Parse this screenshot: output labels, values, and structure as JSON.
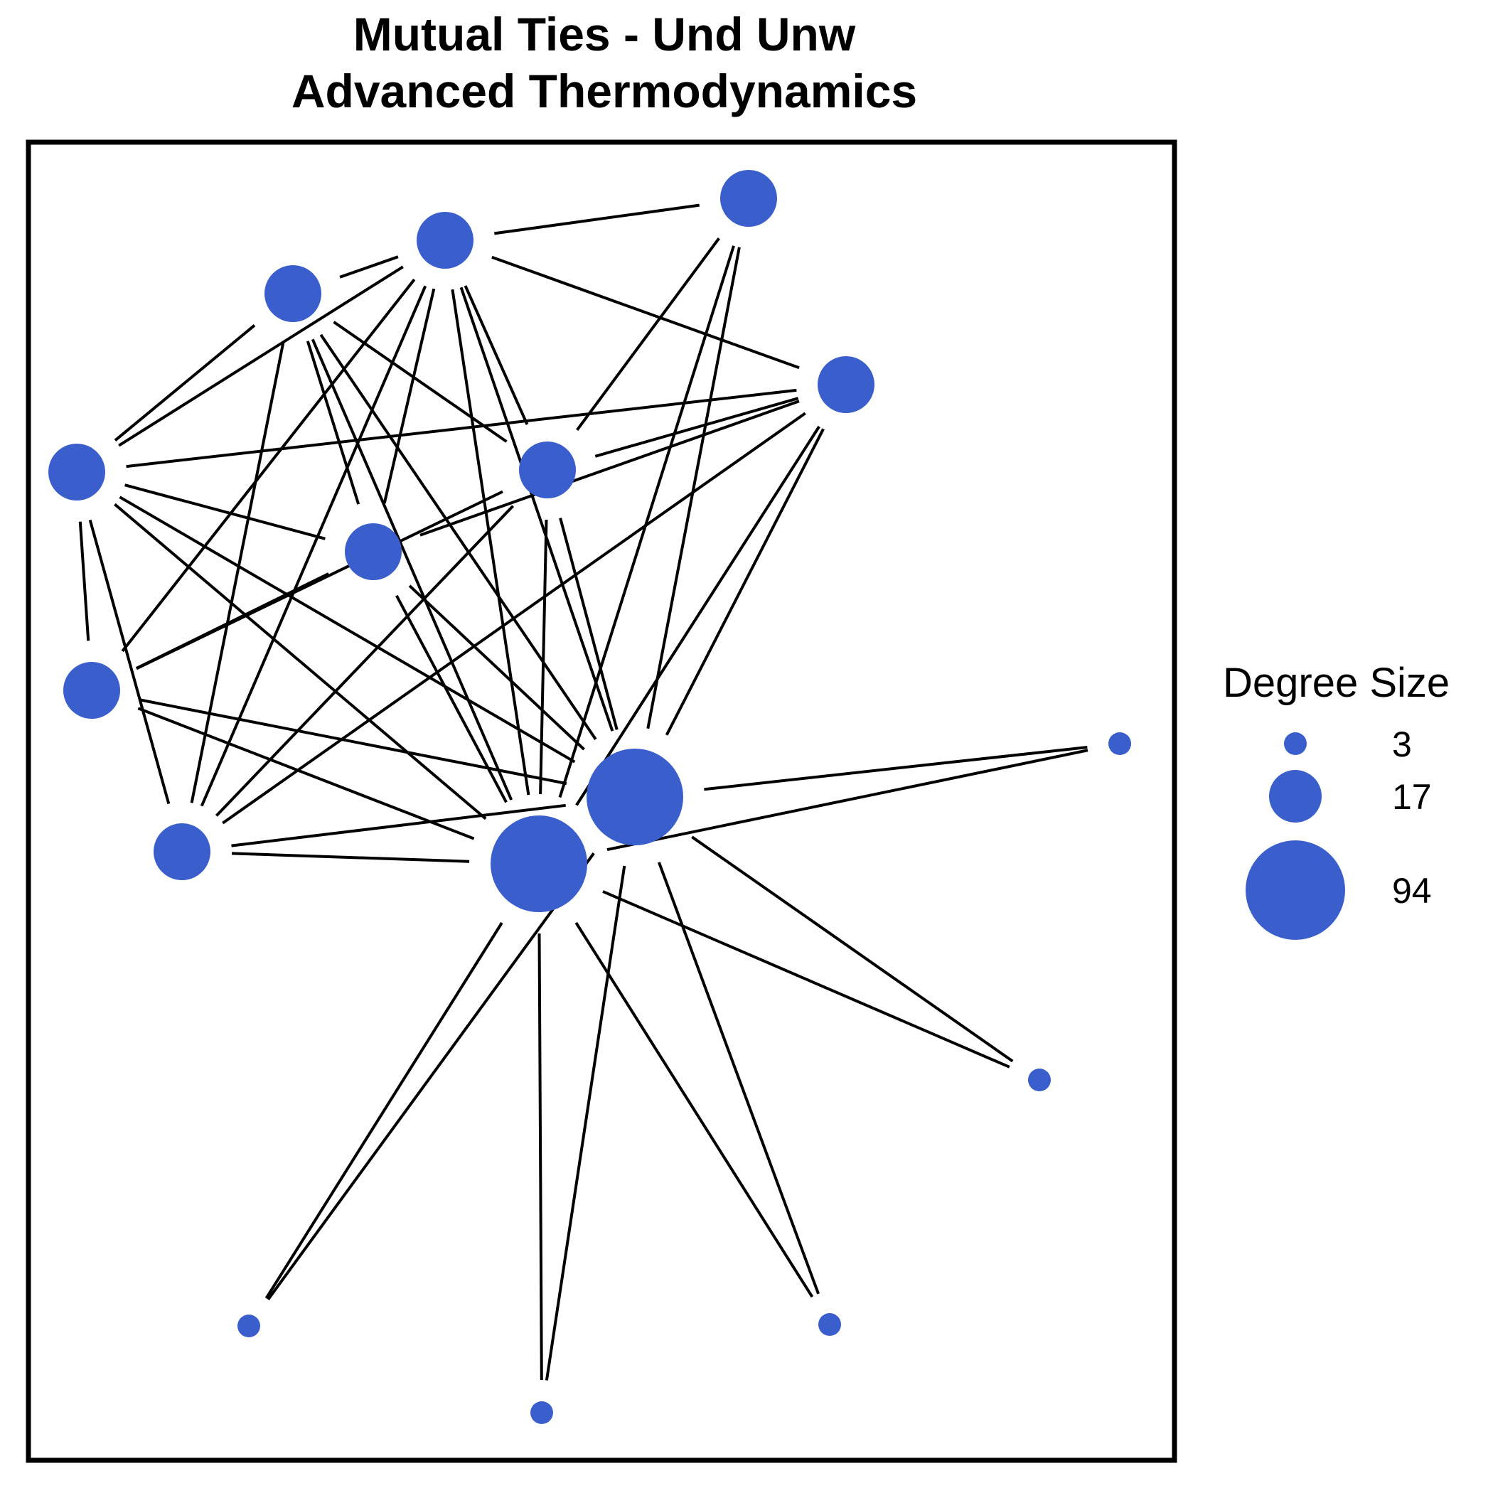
{
  "title": {
    "line1": "Mutual Ties - Und Unw",
    "line2": "Advanced Thermodynamics"
  },
  "colors": {
    "node": "#3A5FCD",
    "edge": "#000000",
    "frame": "#000000"
  },
  "legend": {
    "title": "Degree Size",
    "entries": [
      {
        "label": "3",
        "value": 3
      },
      {
        "label": "17",
        "value": 17
      },
      {
        "label": "94",
        "value": 94
      }
    ]
  },
  "chart_data": {
    "type": "network",
    "directed": false,
    "weighted": false,
    "nodes": [
      {
        "id": "A",
        "degree": 17
      },
      {
        "id": "B",
        "degree": 17
      },
      {
        "id": "C",
        "degree": 17
      },
      {
        "id": "D",
        "degree": 17
      },
      {
        "id": "E",
        "degree": 17
      },
      {
        "id": "F",
        "degree": 17
      },
      {
        "id": "G",
        "degree": 17
      },
      {
        "id": "H",
        "degree": 17
      },
      {
        "id": "I",
        "degree": 17
      },
      {
        "id": "J",
        "degree": 94
      },
      {
        "id": "K",
        "degree": 94
      },
      {
        "id": "L",
        "degree": 3
      },
      {
        "id": "M",
        "degree": 3
      },
      {
        "id": "N",
        "degree": 3
      },
      {
        "id": "O",
        "degree": 3
      },
      {
        "id": "P",
        "degree": 3
      }
    ],
    "edges": [
      [
        "B",
        "C"
      ],
      [
        "C",
        "A"
      ],
      [
        "C",
        "D"
      ],
      [
        "C",
        "E"
      ],
      [
        "C",
        "F"
      ],
      [
        "C",
        "G"
      ],
      [
        "C",
        "H"
      ],
      [
        "C",
        "I"
      ],
      [
        "C",
        "J"
      ],
      [
        "C",
        "K"
      ],
      [
        "B",
        "A"
      ],
      [
        "B",
        "F"
      ],
      [
        "B",
        "G"
      ],
      [
        "B",
        "I"
      ],
      [
        "B",
        "J"
      ],
      [
        "B",
        "K"
      ],
      [
        "A",
        "E"
      ],
      [
        "A",
        "G"
      ],
      [
        "A",
        "H"
      ],
      [
        "A",
        "I"
      ],
      [
        "A",
        "J"
      ],
      [
        "A",
        "K"
      ],
      [
        "D",
        "F"
      ],
      [
        "D",
        "J"
      ],
      [
        "D",
        "K"
      ],
      [
        "E",
        "F"
      ],
      [
        "E",
        "G"
      ],
      [
        "E",
        "I"
      ],
      [
        "E",
        "J"
      ],
      [
        "E",
        "K"
      ],
      [
        "F",
        "H"
      ],
      [
        "F",
        "I"
      ],
      [
        "F",
        "J"
      ],
      [
        "F",
        "K"
      ],
      [
        "G",
        "H"
      ],
      [
        "G",
        "J"
      ],
      [
        "G",
        "K"
      ],
      [
        "H",
        "J"
      ],
      [
        "H",
        "K"
      ],
      [
        "I",
        "J"
      ],
      [
        "I",
        "K"
      ],
      [
        "J",
        "K"
      ],
      [
        "J",
        "L"
      ],
      [
        "J",
        "M"
      ],
      [
        "J",
        "N"
      ],
      [
        "J",
        "O"
      ],
      [
        "J",
        "P"
      ],
      [
        "K",
        "L"
      ],
      [
        "K",
        "M"
      ],
      [
        "K",
        "N"
      ],
      [
        "K",
        "O"
      ],
      [
        "K",
        "P"
      ]
    ]
  }
}
